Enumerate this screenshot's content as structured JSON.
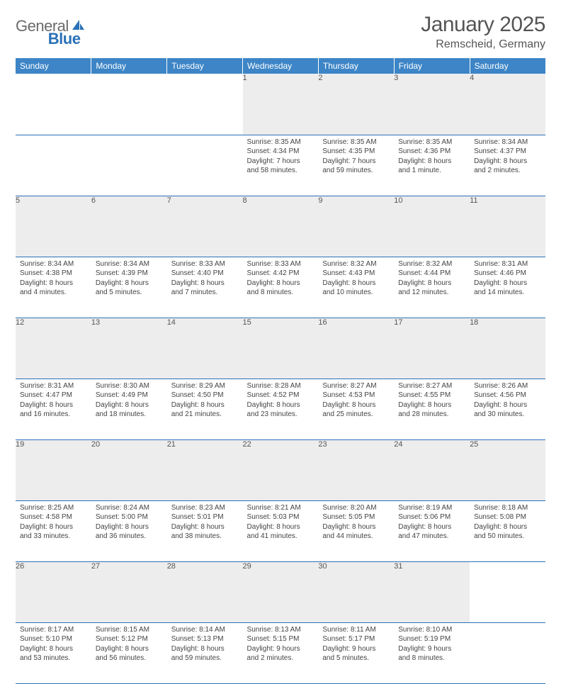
{
  "brand": {
    "part1": "General",
    "part2": "Blue"
  },
  "title": "January 2025",
  "location": "Remscheid, Germany",
  "header_bg": "#3d85c6",
  "daynum_bg": "#ededed",
  "row_border": "#2a71b8",
  "day_headers": [
    "Sunday",
    "Monday",
    "Tuesday",
    "Wednesday",
    "Thursday",
    "Friday",
    "Saturday"
  ],
  "weeks": [
    [
      null,
      null,
      null,
      {
        "n": "1",
        "sr": "Sunrise: 8:35 AM",
        "ss": "Sunset: 4:34 PM",
        "d1": "Daylight: 7 hours",
        "d2": "and 58 minutes."
      },
      {
        "n": "2",
        "sr": "Sunrise: 8:35 AM",
        "ss": "Sunset: 4:35 PM",
        "d1": "Daylight: 7 hours",
        "d2": "and 59 minutes."
      },
      {
        "n": "3",
        "sr": "Sunrise: 8:35 AM",
        "ss": "Sunset: 4:36 PM",
        "d1": "Daylight: 8 hours",
        "d2": "and 1 minute."
      },
      {
        "n": "4",
        "sr": "Sunrise: 8:34 AM",
        "ss": "Sunset: 4:37 PM",
        "d1": "Daylight: 8 hours",
        "d2": "and 2 minutes."
      }
    ],
    [
      {
        "n": "5",
        "sr": "Sunrise: 8:34 AM",
        "ss": "Sunset: 4:38 PM",
        "d1": "Daylight: 8 hours",
        "d2": "and 4 minutes."
      },
      {
        "n": "6",
        "sr": "Sunrise: 8:34 AM",
        "ss": "Sunset: 4:39 PM",
        "d1": "Daylight: 8 hours",
        "d2": "and 5 minutes."
      },
      {
        "n": "7",
        "sr": "Sunrise: 8:33 AM",
        "ss": "Sunset: 4:40 PM",
        "d1": "Daylight: 8 hours",
        "d2": "and 7 minutes."
      },
      {
        "n": "8",
        "sr": "Sunrise: 8:33 AM",
        "ss": "Sunset: 4:42 PM",
        "d1": "Daylight: 8 hours",
        "d2": "and 8 minutes."
      },
      {
        "n": "9",
        "sr": "Sunrise: 8:32 AM",
        "ss": "Sunset: 4:43 PM",
        "d1": "Daylight: 8 hours",
        "d2": "and 10 minutes."
      },
      {
        "n": "10",
        "sr": "Sunrise: 8:32 AM",
        "ss": "Sunset: 4:44 PM",
        "d1": "Daylight: 8 hours",
        "d2": "and 12 minutes."
      },
      {
        "n": "11",
        "sr": "Sunrise: 8:31 AM",
        "ss": "Sunset: 4:46 PM",
        "d1": "Daylight: 8 hours",
        "d2": "and 14 minutes."
      }
    ],
    [
      {
        "n": "12",
        "sr": "Sunrise: 8:31 AM",
        "ss": "Sunset: 4:47 PM",
        "d1": "Daylight: 8 hours",
        "d2": "and 16 minutes."
      },
      {
        "n": "13",
        "sr": "Sunrise: 8:30 AM",
        "ss": "Sunset: 4:49 PM",
        "d1": "Daylight: 8 hours",
        "d2": "and 18 minutes."
      },
      {
        "n": "14",
        "sr": "Sunrise: 8:29 AM",
        "ss": "Sunset: 4:50 PM",
        "d1": "Daylight: 8 hours",
        "d2": "and 21 minutes."
      },
      {
        "n": "15",
        "sr": "Sunrise: 8:28 AM",
        "ss": "Sunset: 4:52 PM",
        "d1": "Daylight: 8 hours",
        "d2": "and 23 minutes."
      },
      {
        "n": "16",
        "sr": "Sunrise: 8:27 AM",
        "ss": "Sunset: 4:53 PM",
        "d1": "Daylight: 8 hours",
        "d2": "and 25 minutes."
      },
      {
        "n": "17",
        "sr": "Sunrise: 8:27 AM",
        "ss": "Sunset: 4:55 PM",
        "d1": "Daylight: 8 hours",
        "d2": "and 28 minutes."
      },
      {
        "n": "18",
        "sr": "Sunrise: 8:26 AM",
        "ss": "Sunset: 4:56 PM",
        "d1": "Daylight: 8 hours",
        "d2": "and 30 minutes."
      }
    ],
    [
      {
        "n": "19",
        "sr": "Sunrise: 8:25 AM",
        "ss": "Sunset: 4:58 PM",
        "d1": "Daylight: 8 hours",
        "d2": "and 33 minutes."
      },
      {
        "n": "20",
        "sr": "Sunrise: 8:24 AM",
        "ss": "Sunset: 5:00 PM",
        "d1": "Daylight: 8 hours",
        "d2": "and 36 minutes."
      },
      {
        "n": "21",
        "sr": "Sunrise: 8:23 AM",
        "ss": "Sunset: 5:01 PM",
        "d1": "Daylight: 8 hours",
        "d2": "and 38 minutes."
      },
      {
        "n": "22",
        "sr": "Sunrise: 8:21 AM",
        "ss": "Sunset: 5:03 PM",
        "d1": "Daylight: 8 hours",
        "d2": "and 41 minutes."
      },
      {
        "n": "23",
        "sr": "Sunrise: 8:20 AM",
        "ss": "Sunset: 5:05 PM",
        "d1": "Daylight: 8 hours",
        "d2": "and 44 minutes."
      },
      {
        "n": "24",
        "sr": "Sunrise: 8:19 AM",
        "ss": "Sunset: 5:06 PM",
        "d1": "Daylight: 8 hours",
        "d2": "and 47 minutes."
      },
      {
        "n": "25",
        "sr": "Sunrise: 8:18 AM",
        "ss": "Sunset: 5:08 PM",
        "d1": "Daylight: 8 hours",
        "d2": "and 50 minutes."
      }
    ],
    [
      {
        "n": "26",
        "sr": "Sunrise: 8:17 AM",
        "ss": "Sunset: 5:10 PM",
        "d1": "Daylight: 8 hours",
        "d2": "and 53 minutes."
      },
      {
        "n": "27",
        "sr": "Sunrise: 8:15 AM",
        "ss": "Sunset: 5:12 PM",
        "d1": "Daylight: 8 hours",
        "d2": "and 56 minutes."
      },
      {
        "n": "28",
        "sr": "Sunrise: 8:14 AM",
        "ss": "Sunset: 5:13 PM",
        "d1": "Daylight: 8 hours",
        "d2": "and 59 minutes."
      },
      {
        "n": "29",
        "sr": "Sunrise: 8:13 AM",
        "ss": "Sunset: 5:15 PM",
        "d1": "Daylight: 9 hours",
        "d2": "and 2 minutes."
      },
      {
        "n": "30",
        "sr": "Sunrise: 8:11 AM",
        "ss": "Sunset: 5:17 PM",
        "d1": "Daylight: 9 hours",
        "d2": "and 5 minutes."
      },
      {
        "n": "31",
        "sr": "Sunrise: 8:10 AM",
        "ss": "Sunset: 5:19 PM",
        "d1": "Daylight: 9 hours",
        "d2": "and 8 minutes."
      },
      null
    ]
  ]
}
